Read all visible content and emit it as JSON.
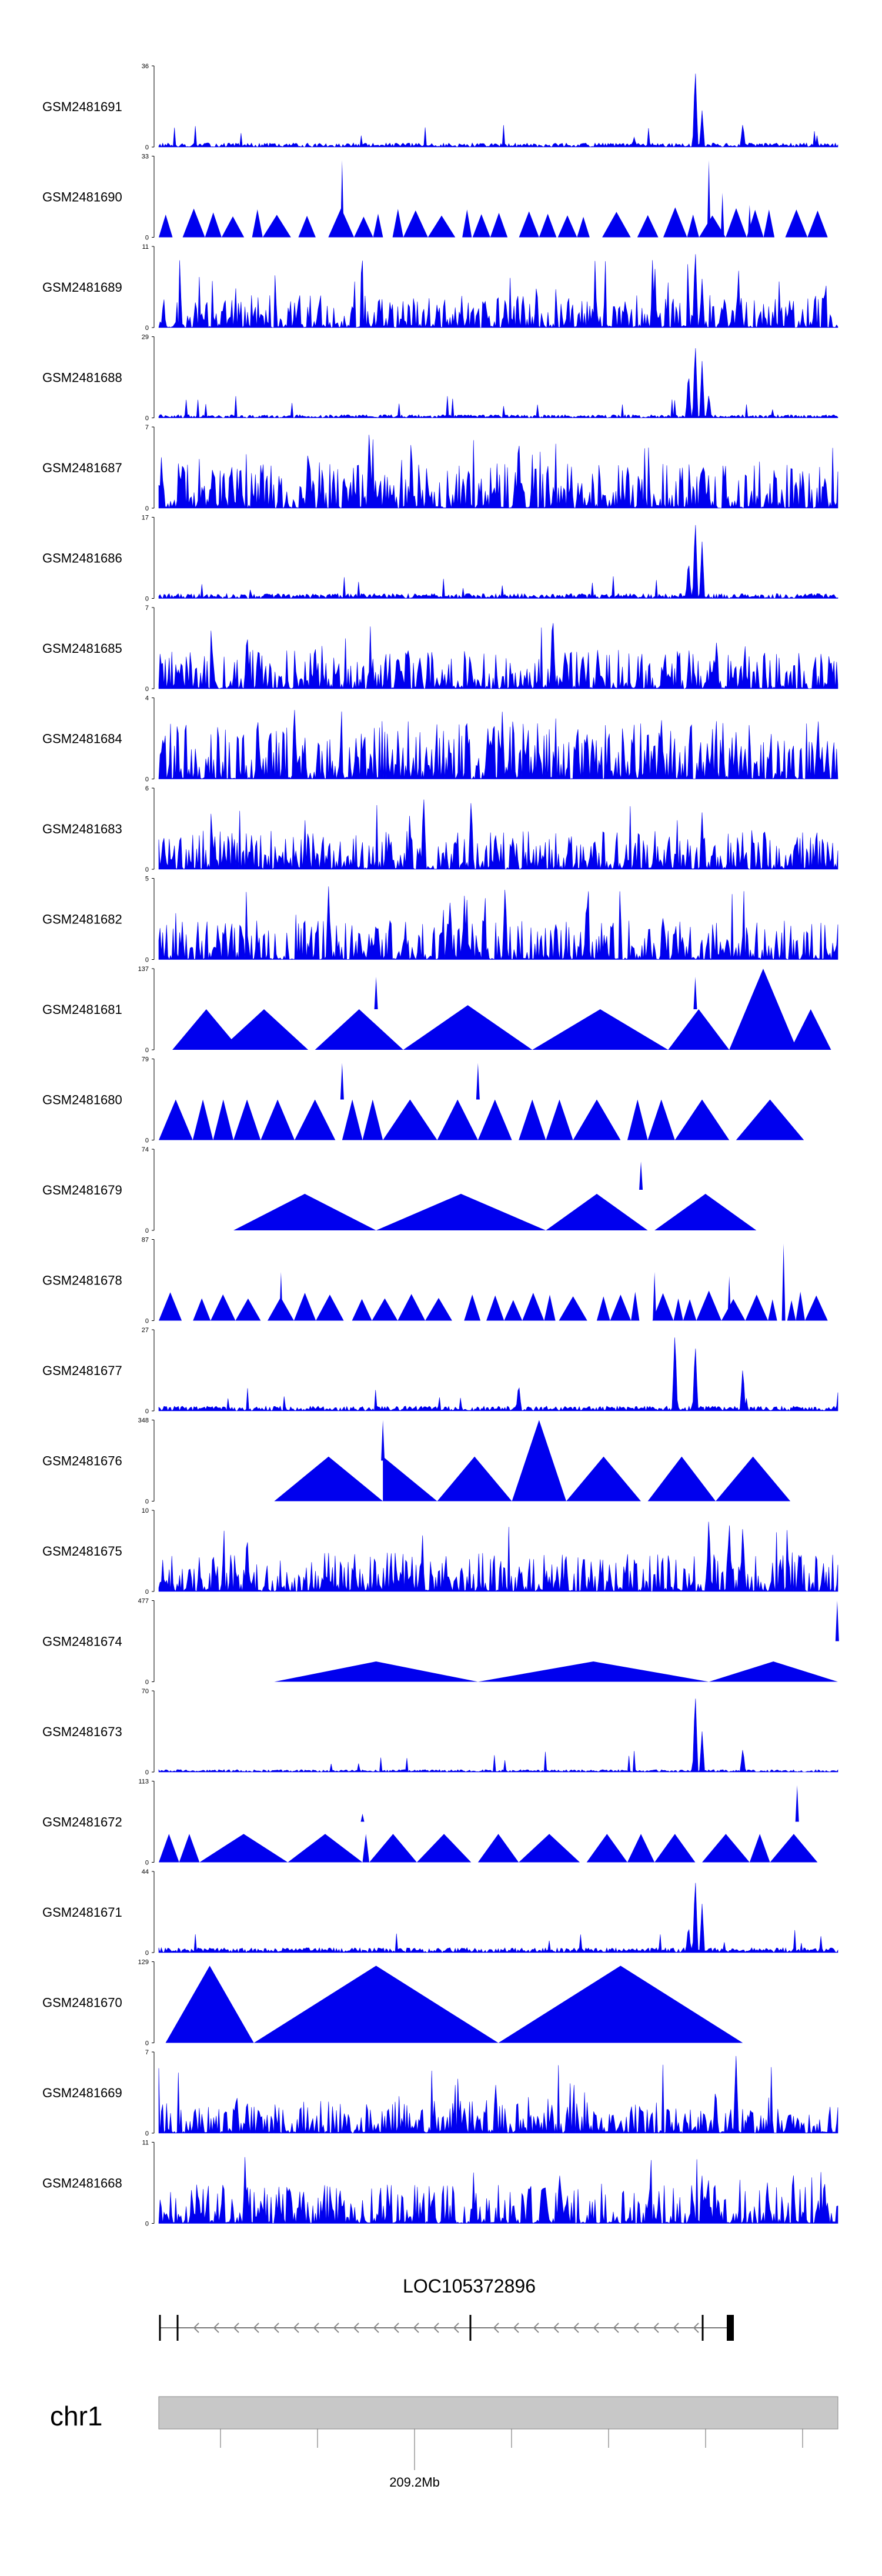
{
  "chart_data": {
    "type": "area",
    "title": "",
    "colors": {
      "signal": "#0000ee",
      "axis": "#000000",
      "chrom_band": "#c8c8c8"
    },
    "tracks": [
      {
        "name": "GSM2481691",
        "ymax": 36,
        "ymin": 0,
        "profile": "noise-peak",
        "base": 0.05,
        "peaks": [
          [
            0.79,
            1.0
          ],
          [
            0.8,
            0.45
          ],
          [
            0.86,
            0.3
          ],
          [
            0.7,
            0.12
          ]
        ]
      },
      {
        "name": "GSM2481690",
        "ymax": 33,
        "ymin": 0,
        "profile": "triangles",
        "seed": 11,
        "peaks": [
          [
            0.27,
            0.95
          ],
          [
            0.81,
            0.95
          ],
          [
            0.83,
            0.55
          ],
          [
            0.87,
            0.4
          ]
        ]
      },
      {
        "name": "GSM2481689",
        "ymax": 11,
        "ymin": 0,
        "profile": "noise",
        "base": 0.25,
        "peaks": [
          [
            0.79,
            1.0
          ],
          [
            0.8,
            0.6
          ],
          [
            0.48,
            0.4
          ],
          [
            0.98,
            0.5
          ]
        ]
      },
      {
        "name": "GSM2481688",
        "ymax": 29,
        "ymin": 0,
        "profile": "noise-peak",
        "base": 0.04,
        "peaks": [
          [
            0.79,
            0.95
          ],
          [
            0.78,
            0.6
          ],
          [
            0.8,
            0.7
          ],
          [
            0.81,
            0.3
          ]
        ]
      },
      {
        "name": "GSM2481687",
        "ymax": 7,
        "ymin": 0,
        "profile": "noise",
        "base": 0.35,
        "peaks": [
          [
            0.31,
            1.0
          ],
          [
            0.53,
            0.95
          ],
          [
            0.22,
            0.8
          ]
        ]
      },
      {
        "name": "GSM2481686",
        "ymax": 17,
        "ymin": 0,
        "profile": "noise-peak",
        "base": 0.06,
        "peaks": [
          [
            0.79,
            1.0
          ],
          [
            0.8,
            0.7
          ],
          [
            0.78,
            0.5
          ]
        ]
      },
      {
        "name": "GSM2481685",
        "ymax": 7,
        "ymin": 0,
        "profile": "noise",
        "base": 0.3,
        "peaks": [
          [
            0.58,
            1.0
          ],
          [
            0.13,
            0.75
          ],
          [
            0.23,
            0.6
          ]
        ]
      },
      {
        "name": "GSM2481684",
        "ymax": 4,
        "ymin": 0,
        "profile": "noise",
        "base": 0.45,
        "peaks": [
          [
            0.2,
            0.85
          ],
          [
            0.74,
            0.8
          ]
        ]
      },
      {
        "name": "GSM2481683",
        "ymax": 6,
        "ymin": 0,
        "profile": "noise",
        "base": 0.3,
        "peaks": [
          [
            0.39,
            0.95
          ],
          [
            0.46,
            0.9
          ],
          [
            0.8,
            0.7
          ]
        ]
      },
      {
        "name": "GSM2481682",
        "ymax": 5,
        "ymin": 0,
        "profile": "noise",
        "base": 0.3,
        "peaks": [
          [
            0.51,
            0.95
          ],
          [
            0.25,
            0.9
          ],
          [
            0.63,
            0.8
          ]
        ]
      },
      {
        "name": "GSM2481681",
        "ymax": 137,
        "ymin": 0,
        "profile": "big-triangles",
        "tri": [
          [
            0.02,
            0.12,
            0.5
          ],
          [
            0.09,
            0.22,
            0.5
          ],
          [
            0.23,
            0.36,
            0.5
          ],
          [
            0.36,
            0.55,
            0.55
          ],
          [
            0.55,
            0.75,
            0.5
          ],
          [
            0.75,
            0.84,
            0.5
          ],
          [
            0.84,
            0.94,
            1.0
          ],
          [
            0.93,
            0.99,
            0.5
          ]
        ],
        "spikes": [
          [
            0.32,
            0.9
          ],
          [
            0.79,
            0.9
          ]
        ]
      },
      {
        "name": "GSM2481680",
        "ymax": 79,
        "ymin": 0,
        "profile": "big-triangles",
        "tri": [
          [
            0.0,
            0.05,
            0.5
          ],
          [
            0.05,
            0.08,
            0.5
          ],
          [
            0.08,
            0.11,
            0.5
          ],
          [
            0.11,
            0.15,
            0.5
          ],
          [
            0.15,
            0.2,
            0.5
          ],
          [
            0.2,
            0.26,
            0.5
          ],
          [
            0.27,
            0.3,
            0.5
          ],
          [
            0.3,
            0.33,
            0.5
          ],
          [
            0.33,
            0.41,
            0.5
          ],
          [
            0.41,
            0.47,
            0.5
          ],
          [
            0.47,
            0.52,
            0.5
          ],
          [
            0.53,
            0.57,
            0.5
          ],
          [
            0.57,
            0.61,
            0.5
          ],
          [
            0.61,
            0.68,
            0.5
          ],
          [
            0.69,
            0.72,
            0.5
          ],
          [
            0.72,
            0.76,
            0.5
          ],
          [
            0.76,
            0.84,
            0.5
          ],
          [
            0.85,
            0.95,
            0.5
          ]
        ],
        "spikes": [
          [
            0.27,
            0.95
          ],
          [
            0.47,
            0.95
          ]
        ]
      },
      {
        "name": "GSM2481679",
        "ymax": 74,
        "ymin": 0,
        "profile": "big-triangles",
        "tri": [
          [
            0.11,
            0.32,
            0.45
          ],
          [
            0.32,
            0.57,
            0.45
          ],
          [
            0.57,
            0.72,
            0.45
          ],
          [
            0.73,
            0.88,
            0.45
          ]
        ],
        "spikes": [
          [
            0.71,
            0.85
          ]
        ]
      },
      {
        "name": "GSM2481678",
        "ymax": 87,
        "ymin": 0,
        "profile": "triangles",
        "seed": 23,
        "peaks": [
          [
            0.92,
            0.95
          ],
          [
            0.73,
            0.6
          ],
          [
            0.18,
            0.6
          ],
          [
            0.84,
            0.55
          ]
        ]
      },
      {
        "name": "GSM2481677",
        "ymax": 27,
        "ymin": 0,
        "profile": "noise-peak",
        "base": 0.06,
        "peaks": [
          [
            0.76,
            1.0
          ],
          [
            0.79,
            0.85
          ],
          [
            0.86,
            0.55
          ],
          [
            0.53,
            0.35
          ]
        ]
      },
      {
        "name": "GSM2481676",
        "ymax": 348,
        "ymin": 0,
        "profile": "big-triangles",
        "tri": [
          [
            0.17,
            0.33,
            0.55
          ],
          [
            0.33,
            0.41,
            0.0
          ],
          [
            0.41,
            0.52,
            0.55
          ],
          [
            0.52,
            0.6,
            1.0
          ],
          [
            0.6,
            0.71,
            0.55
          ],
          [
            0.72,
            0.82,
            0.55
          ],
          [
            0.82,
            0.93,
            0.55
          ]
        ],
        "spikes": [
          [
            0.33,
            1.0
          ]
        ]
      },
      {
        "name": "GSM2481675",
        "ymax": 10,
        "ymin": 0,
        "profile": "noise",
        "base": 0.3,
        "peaks": [
          [
            0.81,
            0.95
          ],
          [
            0.84,
            0.9
          ],
          [
            0.86,
            0.85
          ],
          [
            0.13,
            0.75
          ]
        ]
      },
      {
        "name": "GSM2481674",
        "ymax": 477,
        "ymin": 0,
        "profile": "big-triangles",
        "tri": [
          [
            0.17,
            0.47,
            0.25
          ],
          [
            0.47,
            0.81,
            0.25
          ],
          [
            0.81,
            1.0,
            0.25
          ]
        ],
        "spikes": [
          [
            0.999,
            1.0
          ]
        ]
      },
      {
        "name": "GSM2481673",
        "ymax": 70,
        "ymin": 0,
        "profile": "noise-peak",
        "base": 0.03,
        "peaks": [
          [
            0.79,
            1.0
          ],
          [
            0.8,
            0.5
          ],
          [
            0.86,
            0.3
          ]
        ]
      },
      {
        "name": "GSM2481672",
        "ymax": 113,
        "ymin": 0,
        "profile": "big-triangles",
        "tri": [
          [
            0.0,
            0.03,
            0.35
          ],
          [
            0.03,
            0.06,
            0.35
          ],
          [
            0.06,
            0.19,
            0.35
          ],
          [
            0.19,
            0.3,
            0.35
          ],
          [
            0.3,
            0.31,
            0.35
          ],
          [
            0.31,
            0.38,
            0.35
          ],
          [
            0.38,
            0.46,
            0.35
          ],
          [
            0.47,
            0.53,
            0.35
          ],
          [
            0.53,
            0.62,
            0.35
          ],
          [
            0.63,
            0.69,
            0.35
          ],
          [
            0.69,
            0.73,
            0.35
          ],
          [
            0.73,
            0.79,
            0.35
          ],
          [
            0.8,
            0.87,
            0.35
          ],
          [
            0.87,
            0.9,
            0.35
          ],
          [
            0.9,
            0.97,
            0.35
          ]
        ],
        "spikes": [
          [
            0.3,
            0.6
          ],
          [
            0.94,
            0.95
          ]
        ]
      },
      {
        "name": "GSM2481671",
        "ymax": 44,
        "ymin": 0,
        "profile": "noise-peak",
        "base": 0.06,
        "peaks": [
          [
            0.79,
            0.95
          ],
          [
            0.8,
            0.6
          ],
          [
            0.78,
            0.35
          ]
        ]
      },
      {
        "name": "GSM2481670",
        "ymax": 129,
        "ymin": 0,
        "profile": "big-triangles",
        "tri": [
          [
            0.01,
            0.14,
            0.95
          ],
          [
            0.14,
            0.5,
            0.95
          ],
          [
            0.5,
            0.86,
            0.95
          ]
        ],
        "spikes": []
      },
      {
        "name": "GSM2481669",
        "ymax": 7,
        "ymin": 0,
        "profile": "noise",
        "base": 0.25,
        "peaks": [
          [
            0.85,
            0.95
          ],
          [
            0.82,
            0.6
          ],
          [
            0.13,
            0.45
          ]
        ]
      },
      {
        "name": "GSM2481668",
        "ymax": 11,
        "ymin": 0,
        "profile": "noise",
        "base": 0.3,
        "peaks": [
          [
            0.59,
            0.65
          ],
          [
            0.98,
            0.6
          ],
          [
            0.13,
            0.55
          ]
        ]
      }
    ],
    "gene": {
      "name": "LOC105372896",
      "strand": "-"
    },
    "chromosome": {
      "name": "chr1",
      "position_label": "209.2Mb"
    }
  }
}
